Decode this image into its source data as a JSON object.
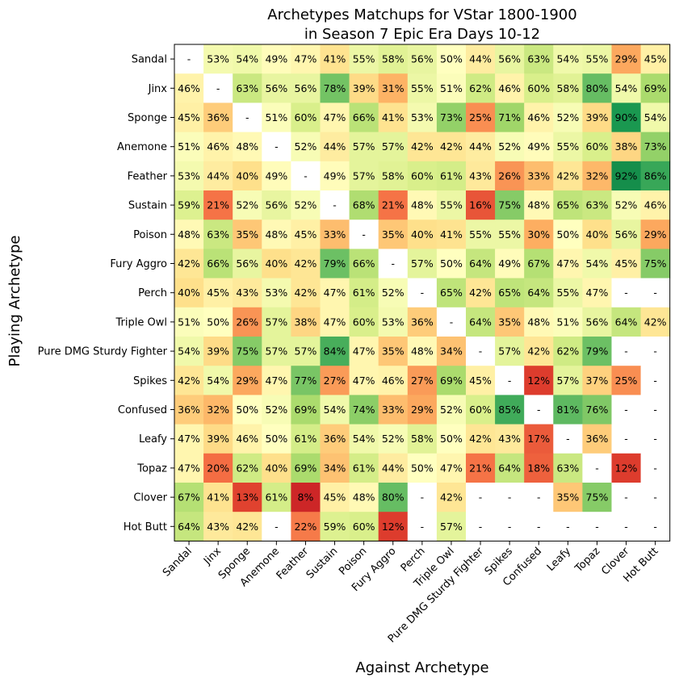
{
  "chart_data": {
    "type": "heatmap",
    "title_lines": [
      "Archetypes Matchups for VStar 1800-1900",
      "in Season 7 Epic Era Days 10-12"
    ],
    "xlabel": "Against Archetype",
    "ylabel": "Playing Archetype",
    "color_scale": "red-yellow-green",
    "value_range": [
      0,
      100
    ],
    "missing_label": "-",
    "row_labels": [
      "Sandal",
      "Jinx",
      "Sponge",
      "Anemone",
      "Feather",
      "Sustain",
      "Poison",
      "Fury Aggro",
      "Perch",
      "Triple Owl",
      "Pure DMG Sturdy Fighter",
      "Spikes",
      "Confused",
      "Leafy",
      "Topaz",
      "Clover",
      "Hot Butt"
    ],
    "col_labels": [
      "Sandal",
      "Jinx",
      "Sponge",
      "Anemone",
      "Feather",
      "Sustain",
      "Poison",
      "Fury Aggro",
      "Perch",
      "Triple Owl",
      "Pure DMG Sturdy Fighter",
      "Spikes",
      "Confused",
      "Leafy",
      "Topaz",
      "Clover",
      "Hot Butt"
    ],
    "values": [
      [
        null,
        53,
        54,
        49,
        47,
        41,
        55,
        58,
        56,
        50,
        44,
        56,
        63,
        54,
        55,
        29,
        45
      ],
      [
        46,
        null,
        63,
        56,
        56,
        78,
        39,
        31,
        55,
        51,
        62,
        46,
        60,
        58,
        80,
        54,
        69
      ],
      [
        45,
        36,
        null,
        51,
        60,
        47,
        66,
        41,
        53,
        73,
        25,
        71,
        46,
        52,
        39,
        90,
        54
      ],
      [
        51,
        46,
        48,
        null,
        52,
        44,
        57,
        57,
        42,
        42,
        44,
        52,
        49,
        55,
        60,
        38,
        73
      ],
      [
        53,
        44,
        40,
        49,
        null,
        49,
        57,
        58,
        60,
        61,
        43,
        26,
        33,
        42,
        32,
        92,
        86
      ],
      [
        59,
        21,
        52,
        56,
        52,
        null,
        68,
        21,
        48,
        55,
        16,
        75,
        48,
        65,
        63,
        52,
        46
      ],
      [
        48,
        63,
        35,
        48,
        45,
        33,
        null,
        35,
        40,
        41,
        55,
        55,
        30,
        50,
        40,
        56,
        29
      ],
      [
        42,
        66,
        56,
        40,
        42,
        79,
        66,
        null,
        57,
        50,
        64,
        49,
        67,
        47,
        54,
        45,
        75
      ],
      [
        40,
        45,
        43,
        53,
        42,
        47,
        61,
        52,
        null,
        65,
        42,
        65,
        64,
        55,
        47,
        null,
        null
      ],
      [
        51,
        50,
        26,
        57,
        38,
        47,
        60,
        53,
        36,
        null,
        64,
        35,
        48,
        51,
        56,
        64,
        42
      ],
      [
        54,
        39,
        75,
        57,
        57,
        84,
        47,
        35,
        48,
        34,
        null,
        57,
        42,
        62,
        79,
        null,
        null
      ],
      [
        42,
        54,
        29,
        47,
        77,
        27,
        47,
        46,
        27,
        69,
        45,
        null,
        12,
        57,
        37,
        25,
        null
      ],
      [
        36,
        32,
        50,
        52,
        69,
        54,
        74,
        33,
        29,
        52,
        60,
        85,
        null,
        81,
        76,
        null,
        null
      ],
      [
        47,
        39,
        46,
        50,
        61,
        36,
        54,
        52,
        58,
        50,
        42,
        43,
        17,
        null,
        36,
        null,
        null
      ],
      [
        47,
        20,
        62,
        40,
        69,
        34,
        61,
        44,
        50,
        47,
        21,
        64,
        18,
        63,
        null,
        12,
        null
      ],
      [
        67,
        41,
        13,
        61,
        8,
        45,
        48,
        80,
        null,
        42,
        null,
        null,
        null,
        35,
        75,
        null,
        null
      ],
      [
        64,
        43,
        42,
        null,
        22,
        59,
        60,
        12,
        null,
        57,
        null,
        null,
        null,
        null,
        null,
        null,
        null
      ]
    ]
  }
}
